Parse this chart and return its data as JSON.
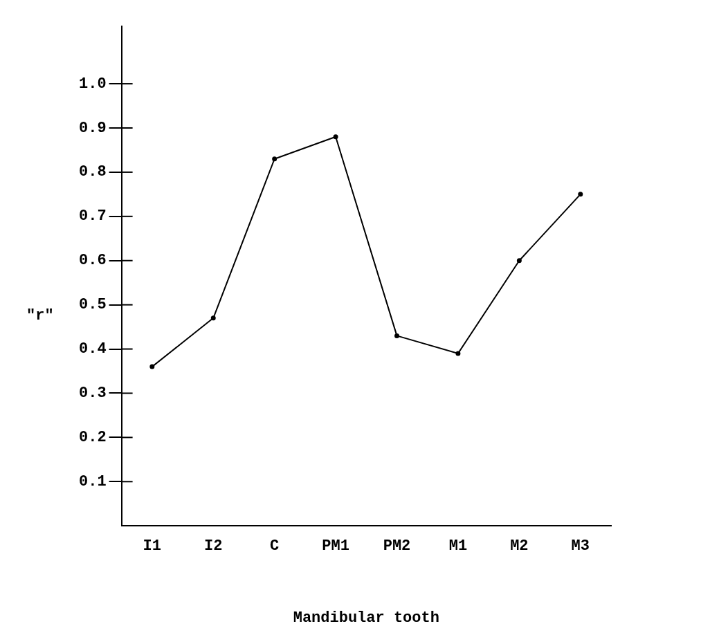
{
  "chart_data": {
    "type": "line",
    "xlabel": "Mandibular tooth",
    "ylabel": "\"r\"",
    "categories": [
      "I1",
      "I2",
      "C",
      "PM1",
      "PM2",
      "M1",
      "M2",
      "M3"
    ],
    "series": [
      {
        "color": "#000000",
        "values": [
          0.36,
          0.47,
          0.83,
          0.88,
          0.43,
          0.39,
          0.6,
          0.75
        ]
      }
    ],
    "ylim": [
      0,
      1.13
    ],
    "yticks": [
      {
        "value": 0.1,
        "label": "0.1"
      },
      {
        "value": 0.2,
        "label": "0.2"
      },
      {
        "value": 0.3,
        "label": "0.3"
      },
      {
        "value": 0.4,
        "label": "0.4"
      },
      {
        "value": 0.5,
        "label": "0.5"
      },
      {
        "value": 0.6,
        "label": "0.6"
      },
      {
        "value": 0.7,
        "label": "0.7"
      },
      {
        "value": 0.8,
        "label": "0.8"
      },
      {
        "value": 0.9,
        "label": "0.9"
      },
      {
        "value": 1.0,
        "label": "1.0"
      }
    ],
    "grid": false,
    "legend": false,
    "marker": "circle",
    "line_style": "solid"
  }
}
